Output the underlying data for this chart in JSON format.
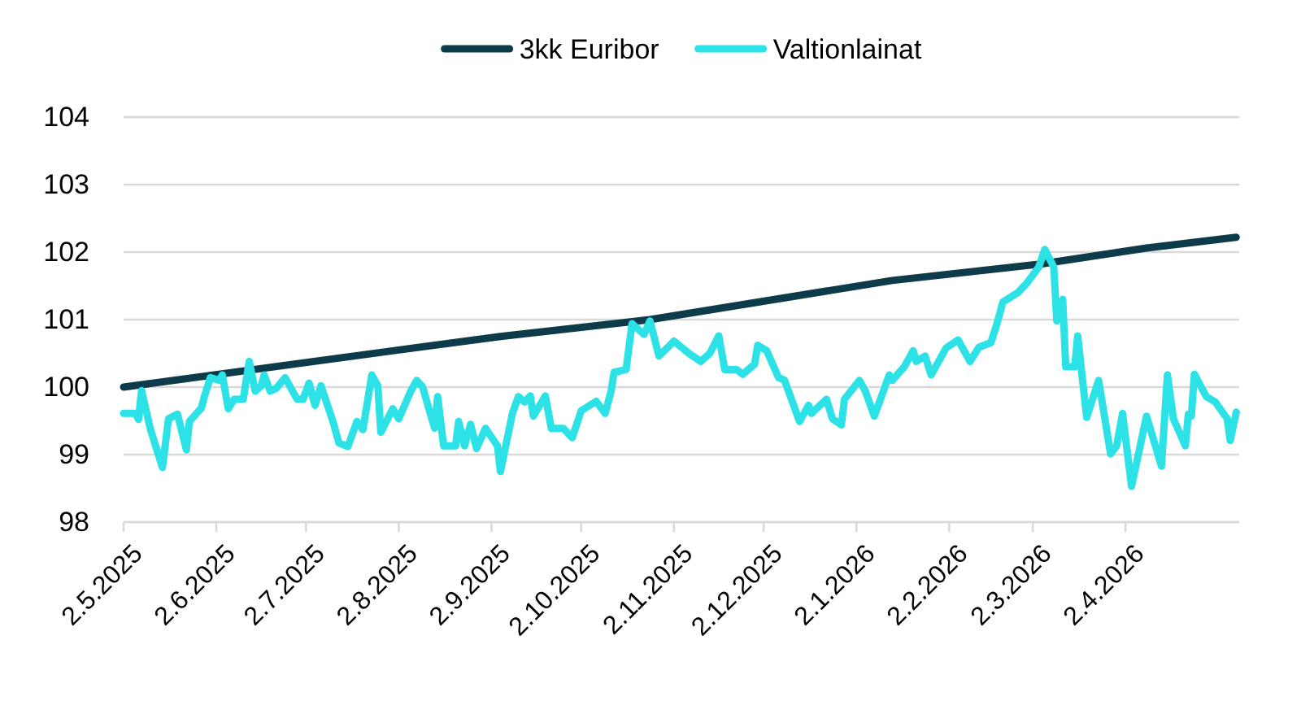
{
  "chart_data": {
    "type": "line",
    "xlim": [
      "2025-05-02",
      "2026-05-10"
    ],
    "xticks": [
      {
        "value": "2025-05-02",
        "label": "2.5.2025"
      },
      {
        "value": "2025-06-02",
        "label": "2.6.2025"
      },
      {
        "value": "2025-07-02",
        "label": "2.7.2025"
      },
      {
        "value": "2025-08-02",
        "label": "2.8.2025"
      },
      {
        "value": "2025-09-02",
        "label": "2.9.2025"
      },
      {
        "value": "2025-10-02",
        "label": "2.10.2025"
      },
      {
        "value": "2025-11-02",
        "label": "2.11.2025"
      },
      {
        "value": "2025-12-02",
        "label": "2.12.2025"
      },
      {
        "value": "2026-01-02",
        "label": "2.1.2026"
      },
      {
        "value": "2026-02-02",
        "label": "2.2.2026"
      },
      {
        "value": "2026-03-02",
        "label": "2.3.2026"
      },
      {
        "value": "2026-04-02",
        "label": "2.4.2026"
      }
    ],
    "ylim": [
      98,
      104
    ],
    "yticks": [
      98,
      99,
      100,
      101,
      102,
      103,
      104
    ],
    "grid": "y",
    "legend": "top",
    "line_style": "solid",
    "marker": "none",
    "series": [
      {
        "name": "3kk Euribor",
        "color": "#0d3b4a",
        "x": [
          "2025-05-02",
          "2025-08-02",
          "2025-09-05",
          "2025-10-25",
          "2026-01-14",
          "2026-03-04",
          "2026-04-09",
          "2026-05-09"
        ],
        "values": [
          100.0,
          100.55,
          100.75,
          101.0,
          101.58,
          101.82,
          102.06,
          102.22
        ]
      },
      {
        "name": "Valtionlainat",
        "color": "#2de2e6",
        "x": [
          "2025-05-02",
          "2025-05-06",
          "2025-05-07",
          "2025-05-08",
          "2025-05-11",
          "2025-05-15",
          "2025-05-17",
          "2025-05-20",
          "2025-05-23",
          "2025-05-24",
          "2025-05-28",
          "2025-05-29",
          "2025-05-31",
          "2025-06-03",
          "2025-06-04",
          "2025-06-06",
          "2025-06-08",
          "2025-06-11",
          "2025-06-13",
          "2025-06-15",
          "2025-06-17",
          "2025-06-18",
          "2025-06-20",
          "2025-06-22",
          "2025-06-25",
          "2025-06-29",
          "2025-07-01",
          "2025-07-03",
          "2025-07-05",
          "2025-07-07",
          "2025-07-11",
          "2025-07-13",
          "2025-07-16",
          "2025-07-19",
          "2025-07-21",
          "2025-07-24",
          "2025-07-26",
          "2025-07-27",
          "2025-07-31",
          "2025-08-02",
          "2025-08-06",
          "2025-08-08",
          "2025-08-10",
          "2025-08-12",
          "2025-08-14",
          "2025-08-15",
          "2025-08-17",
          "2025-08-21",
          "2025-08-22",
          "2025-08-24",
          "2025-08-26",
          "2025-08-28",
          "2025-08-31",
          "2025-09-04",
          "2025-09-05",
          "2025-09-09",
          "2025-09-11",
          "2025-09-13",
          "2025-09-15",
          "2025-09-16",
          "2025-09-20",
          "2025-09-22",
          "2025-09-26",
          "2025-09-29",
          "2025-10-02",
          "2025-10-07",
          "2025-10-10",
          "2025-10-12",
          "2025-10-13",
          "2025-10-17",
          "2025-10-19",
          "2025-10-23",
          "2025-10-25",
          "2025-10-28",
          "2025-11-02",
          "2025-11-07",
          "2025-11-11",
          "2025-11-14",
          "2025-11-17",
          "2025-11-19",
          "2025-11-23",
          "2025-11-25",
          "2025-11-29",
          "2025-11-30",
          "2025-12-03",
          "2025-12-07",
          "2025-12-09",
          "2025-12-14",
          "2025-12-17",
          "2025-12-18",
          "2025-12-23",
          "2025-12-25",
          "2025-12-28",
          "2025-12-29",
          "2026-01-03",
          "2026-01-05",
          "2026-01-08",
          "2026-01-13",
          "2026-01-14",
          "2026-01-18",
          "2026-01-21",
          "2026-01-22",
          "2026-01-25",
          "2026-01-27",
          "2026-02-01",
          "2026-02-05",
          "2026-02-09",
          "2026-02-12",
          "2026-02-16",
          "2026-02-18",
          "2026-02-20",
          "2026-02-25",
          "2026-02-28",
          "2026-03-04",
          "2026-03-06",
          "2026-03-09",
          "2026-03-10",
          "2026-03-12",
          "2026-03-13",
          "2026-03-16",
          "2026-03-17",
          "2026-03-20",
          "2026-03-24",
          "2026-03-28",
          "2026-03-30",
          "2026-04-01",
          "2026-04-04",
          "2026-04-09",
          "2026-04-14",
          "2026-04-16",
          "2026-04-18",
          "2026-04-22",
          "2026-04-23",
          "2026-04-24",
          "2026-04-25",
          "2026-04-29",
          "2026-05-02",
          "2026-05-06",
          "2026-05-07",
          "2026-05-09"
        ],
        "values": [
          99.61,
          99.61,
          99.52,
          99.95,
          99.37,
          98.81,
          99.53,
          99.6,
          99.07,
          99.49,
          99.69,
          99.86,
          100.14,
          100.1,
          100.18,
          99.68,
          99.82,
          99.82,
          100.38,
          99.94,
          100.02,
          100.18,
          99.94,
          99.98,
          100.14,
          99.82,
          99.82,
          100.06,
          99.73,
          100.02,
          99.49,
          99.17,
          99.12,
          99.49,
          99.37,
          100.18,
          100.02,
          99.33,
          99.68,
          99.53,
          99.94,
          100.1,
          100.0,
          99.69,
          99.39,
          99.86,
          99.13,
          99.13,
          99.49,
          99.13,
          99.45,
          99.09,
          99.39,
          99.13,
          98.75,
          99.61,
          99.86,
          99.78,
          99.87,
          99.57,
          99.87,
          99.39,
          99.39,
          99.25,
          99.65,
          99.79,
          99.61,
          99.94,
          100.22,
          100.26,
          100.94,
          100.78,
          100.98,
          100.46,
          100.68,
          100.5,
          100.38,
          100.5,
          100.76,
          100.26,
          100.26,
          100.19,
          100.34,
          100.62,
          100.54,
          100.14,
          100.1,
          99.49,
          99.73,
          99.61,
          99.82,
          99.53,
          99.44,
          99.82,
          100.1,
          99.94,
          99.57,
          100.18,
          100.1,
          100.3,
          100.54,
          100.38,
          100.46,
          100.18,
          100.58,
          100.7,
          100.38,
          100.59,
          100.66,
          100.94,
          101.26,
          101.4,
          101.54,
          101.78,
          102.04,
          101.78,
          100.98,
          101.3,
          100.3,
          100.3,
          100.76,
          99.55,
          100.1,
          99.01,
          99.13,
          99.61,
          98.53,
          99.57,
          98.83,
          100.18,
          99.53,
          99.13,
          99.6,
          99.57,
          100.19,
          99.86,
          99.78,
          99.53,
          99.21,
          99.63
        ]
      }
    ]
  }
}
